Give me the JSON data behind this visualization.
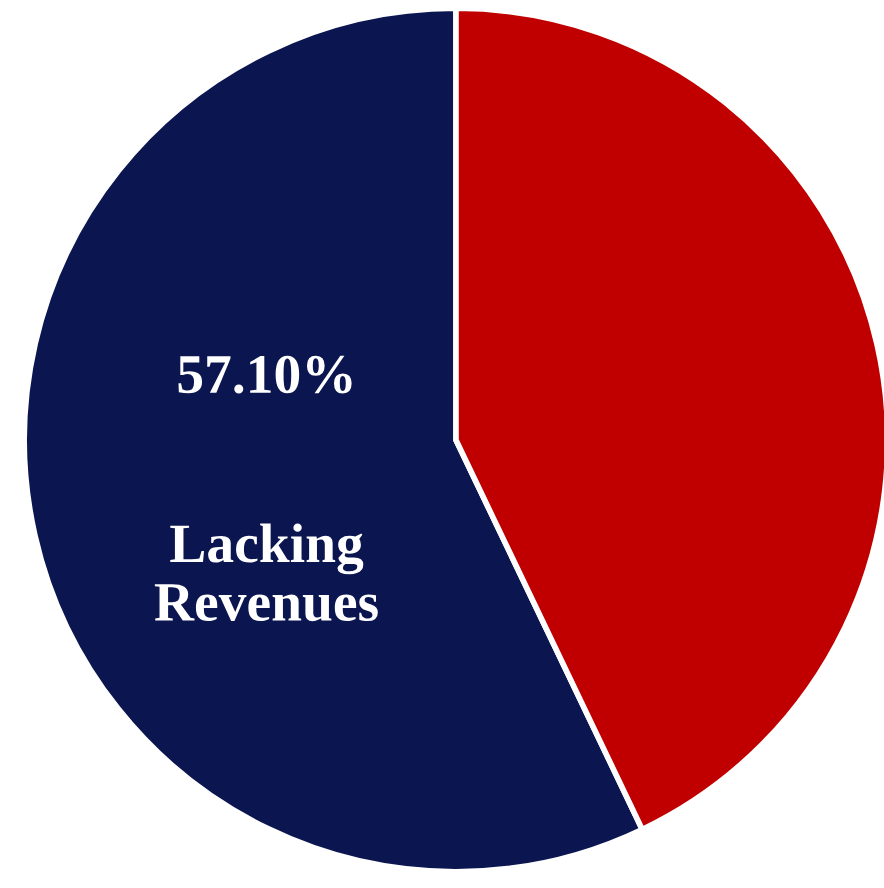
{
  "chart_data": {
    "type": "pie",
    "categories": [
      "Lacking Revenues",
      null
    ],
    "values": [
      57.1,
      42.9
    ],
    "value_labels": [
      "57.10%",
      null
    ],
    "colors": [
      "#0b1650",
      "#c00000"
    ],
    "legend": false
  }
}
